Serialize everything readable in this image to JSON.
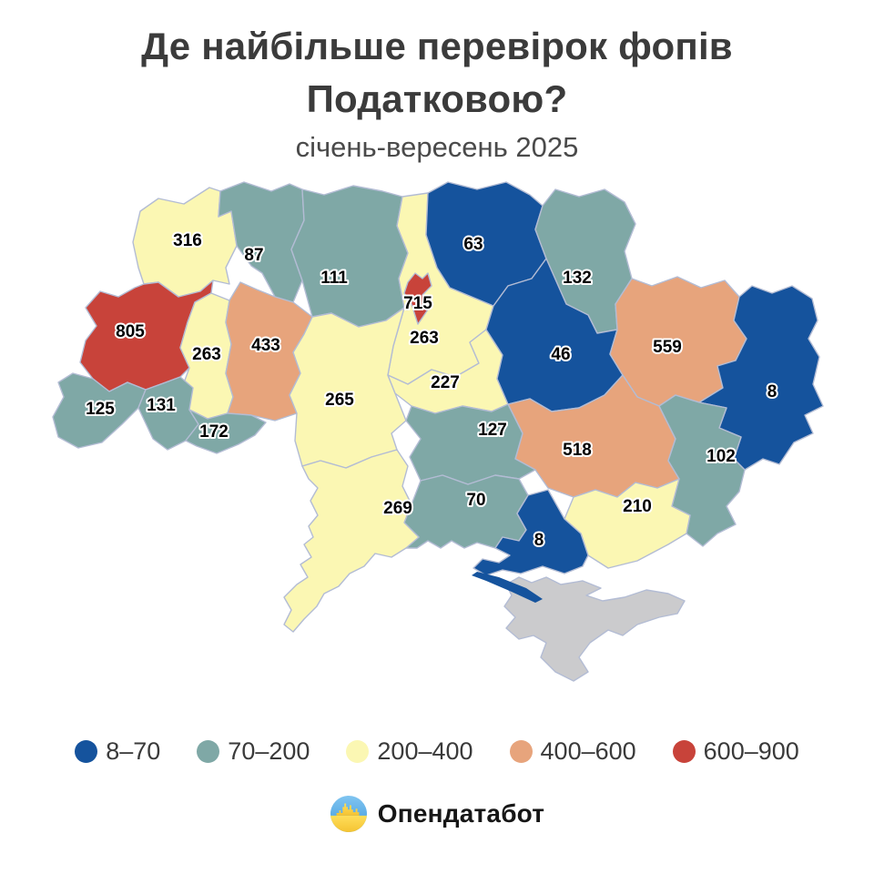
{
  "title": {
    "line1": "Де найбільше перевірок фопів",
    "line2": "Податковою?",
    "subtitle": "січень-вересень 2025"
  },
  "chart_data": {
    "type": "heatmap",
    "title": "Де найбільше перевірок фопів Податковою?",
    "subtitle": "січень-вересень 2025",
    "legend_position": "bottom",
    "bins": [
      {
        "label": "8–70",
        "color": "#15539D"
      },
      {
        "label": "70–200",
        "color": "#7FA8A6"
      },
      {
        "label": "200–400",
        "color": "#FBF7B3"
      },
      {
        "label": "400–600",
        "color": "#E7A47C"
      },
      {
        "label": "600–900",
        "color": "#C8433A"
      }
    ],
    "regions": [
      {
        "id": "volyn",
        "value": 316,
        "bin": 2
      },
      {
        "id": "rivne",
        "value": 87,
        "bin": 1
      },
      {
        "id": "zhytomyr",
        "value": 111,
        "bin": 1
      },
      {
        "id": "kyiv-oblast",
        "value": 263,
        "bin": 2
      },
      {
        "id": "kyiv-city",
        "value": 715,
        "bin": 4
      },
      {
        "id": "chernihiv",
        "value": 63,
        "bin": 0
      },
      {
        "id": "sumy",
        "value": 132,
        "bin": 1
      },
      {
        "id": "lviv",
        "value": 805,
        "bin": 4
      },
      {
        "id": "ternopil",
        "value": 263,
        "bin": 2
      },
      {
        "id": "khmelnytskyi",
        "value": 433,
        "bin": 3
      },
      {
        "id": "zakarpattia",
        "value": 125,
        "bin": 1
      },
      {
        "id": "ivano-frankivsk",
        "value": 131,
        "bin": 1
      },
      {
        "id": "chernivtsi",
        "value": 172,
        "bin": 1
      },
      {
        "id": "vinnytsia",
        "value": 265,
        "bin": 2
      },
      {
        "id": "cherkasy",
        "value": 227,
        "bin": 2
      },
      {
        "id": "poltava",
        "value": 46,
        "bin": 0
      },
      {
        "id": "kharkiv",
        "value": 559,
        "bin": 3
      },
      {
        "id": "luhansk",
        "value": 8,
        "bin": 0
      },
      {
        "id": "dnipropetrovsk",
        "value": 518,
        "bin": 3
      },
      {
        "id": "donetsk",
        "value": 102,
        "bin": 1
      },
      {
        "id": "zaporizhzhia",
        "value": 210,
        "bin": 2
      },
      {
        "id": "kirovohrad",
        "value": 127,
        "bin": 1
      },
      {
        "id": "mykolaiv",
        "value": 70,
        "bin": 1
      },
      {
        "id": "kherson",
        "value": 8,
        "bin": 0
      },
      {
        "id": "odesa",
        "value": 269,
        "bin": 2
      },
      {
        "id": "crimea",
        "value": null,
        "bin": null
      }
    ]
  },
  "map": {
    "border_color": "#B3BCD4",
    "no_data_color": "#CBCBCD"
  },
  "footer": {
    "brand": "Опендатабот"
  }
}
